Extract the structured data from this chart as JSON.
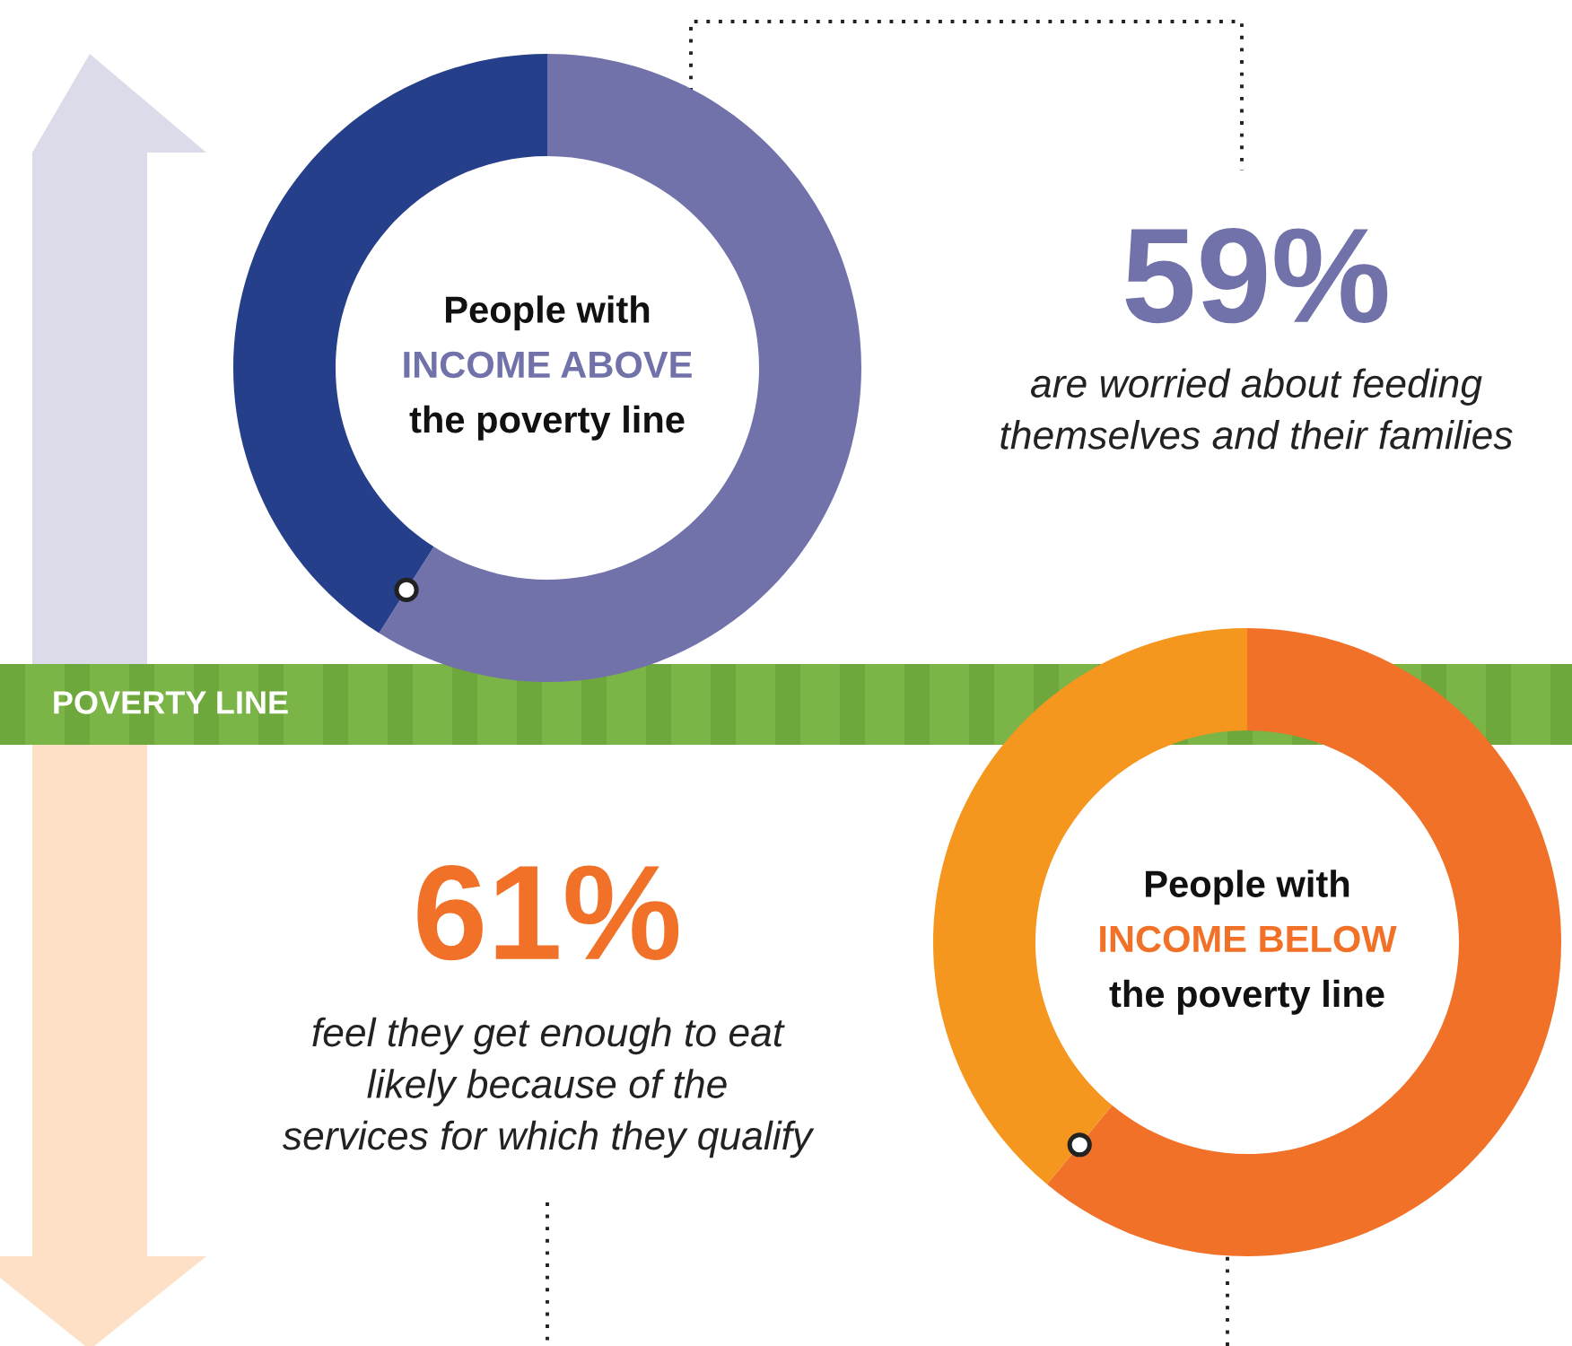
{
  "chart_data": [
    {
      "type": "donut",
      "title": "People with\nINCOME ABOVE\nthe poverty line",
      "categories": [
        null,
        null
      ],
      "values": [
        59,
        41
      ],
      "colors": [
        "#7272ab",
        "#263f8a"
      ],
      "annotations": [
        "59%",
        "are worried about feeding\nthemselves and their families",
        "POVERTY LINE"
      ]
    },
    {
      "type": "donut",
      "title": "People with\nINCOME BELOW\nthe poverty line",
      "categories": [
        null,
        null
      ],
      "values": [
        61,
        39
      ],
      "colors": [
        "#f07127",
        "#f5961f"
      ],
      "annotations": [
        "61%",
        "feel they get enough to eat\nlikely because of the\nservices for which they qualify"
      ]
    }
  ]
}
